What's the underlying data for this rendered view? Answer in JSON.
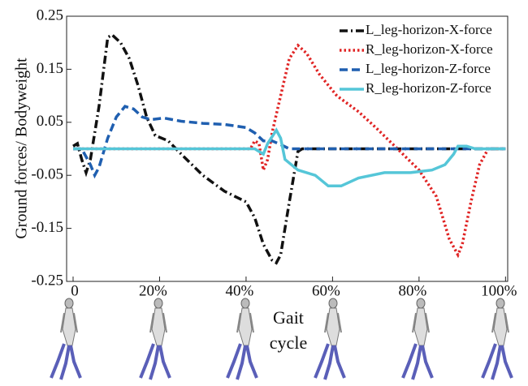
{
  "chart_data": {
    "type": "line",
    "ylabel": "Ground  forces/ Bodyweight",
    "annotation": [
      "Gait",
      "cycle"
    ],
    "xlim": [
      -1.5,
      100.5
    ],
    "ylim": [
      -0.25,
      0.25
    ],
    "xticks": [
      0,
      {
        "value": 20,
        "label": "20%"
      },
      {
        "value": 40,
        "label": "40%"
      },
      {
        "value": 60,
        "label": "60%"
      },
      {
        "value": 80,
        "label": "80%"
      },
      {
        "value": 100,
        "label": "100%"
      }
    ],
    "yticks": [
      0.25,
      0.15,
      0.05,
      -0.05,
      -0.15,
      -0.25
    ],
    "grid": false,
    "legend": "upper right",
    "series": [
      {
        "name": "L_leg-horizon-X-force",
        "color": "#111111",
        "dash": "dashdot",
        "x": [
          0,
          1,
          2,
          3,
          4,
          6,
          8,
          9,
          11,
          13,
          15,
          17,
          19,
          22,
          25,
          30,
          35,
          40,
          42,
          44,
          46,
          47,
          48,
          50,
          52,
          53,
          100
        ],
        "values": [
          0.005,
          0.01,
          -0.02,
          -0.045,
          -0.02,
          0.08,
          0.21,
          0.215,
          0.2,
          0.17,
          0.12,
          0.06,
          0.025,
          0.015,
          -0.01,
          -0.05,
          -0.08,
          -0.1,
          -0.13,
          -0.18,
          -0.21,
          -0.215,
          -0.2,
          -0.1,
          -0.005,
          0,
          0
        ]
      },
      {
        "name": "R_leg-horizon-X-force",
        "color": "#e02424",
        "dash": "dotted",
        "x": [
          0,
          41,
          42,
          43,
          44,
          45,
          46,
          48,
          50,
          52,
          54,
          57,
          61,
          66,
          70,
          75,
          80,
          84,
          87,
          89,
          90,
          92,
          94,
          96,
          100
        ],
        "values": [
          0,
          0,
          0.015,
          0.01,
          -0.04,
          -0.02,
          0.03,
          0.1,
          0.17,
          0.195,
          0.18,
          0.14,
          0.1,
          0.07,
          0.04,
          0,
          -0.04,
          -0.09,
          -0.17,
          -0.2,
          -0.18,
          -0.1,
          -0.03,
          0,
          0
        ]
      },
      {
        "name": "L_leg-horizon-Z-force",
        "color": "#1f5fb0",
        "dash": "dashed",
        "x": [
          0,
          2,
          4,
          5,
          6,
          8,
          10,
          12,
          14,
          16,
          18,
          21,
          25,
          30,
          35,
          40,
          42,
          44,
          46,
          48,
          50,
          100
        ],
        "values": [
          0,
          0,
          -0.03,
          -0.05,
          -0.035,
          0.02,
          0.06,
          0.08,
          0.075,
          0.06,
          0.055,
          0.058,
          0.052,
          0.048,
          0.046,
          0.04,
          0.03,
          0.015,
          0.015,
          0.008,
          0,
          0
        ]
      },
      {
        "name": "R_leg-horizon-Z-force",
        "color": "#55c6d8",
        "dash": "solid",
        "x": [
          0,
          42,
          44,
          45,
          47,
          48,
          49,
          52,
          56,
          59,
          62,
          66,
          72,
          78,
          83,
          86,
          88,
          89,
          91,
          93,
          100
        ],
        "values": [
          0,
          0,
          -0.01,
          0.01,
          0.035,
          0.02,
          -0.02,
          -0.04,
          -0.05,
          -0.07,
          -0.07,
          -0.055,
          -0.045,
          -0.045,
          -0.04,
          -0.03,
          -0.01,
          0.005,
          0.005,
          0,
          0
        ]
      }
    ]
  }
}
